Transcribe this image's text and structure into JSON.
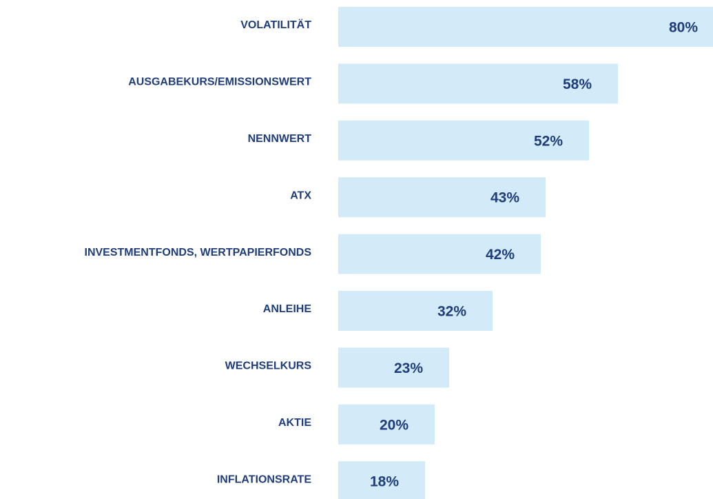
{
  "chart_data": {
    "type": "bar",
    "orientation": "horizontal",
    "categories": [
      "VOLATILITÄT",
      "AUSGABEKURS/EMISSIONSWERT",
      "NENNWERT",
      "ATX",
      "INVESTMENTFONDS, WERTPAPIERFONDS",
      "ANLEIHE",
      "WECHSELKURS",
      "AKTIE",
      "INFLATIONSRATE"
    ],
    "values": [
      80,
      58,
      52,
      43,
      42,
      32,
      23,
      20,
      18
    ],
    "value_labels": [
      "80%",
      "58%",
      "52%",
      "43%",
      "42%",
      "32%",
      "23%",
      "20%",
      "18%"
    ],
    "color": "#d3eaf9"
  }
}
